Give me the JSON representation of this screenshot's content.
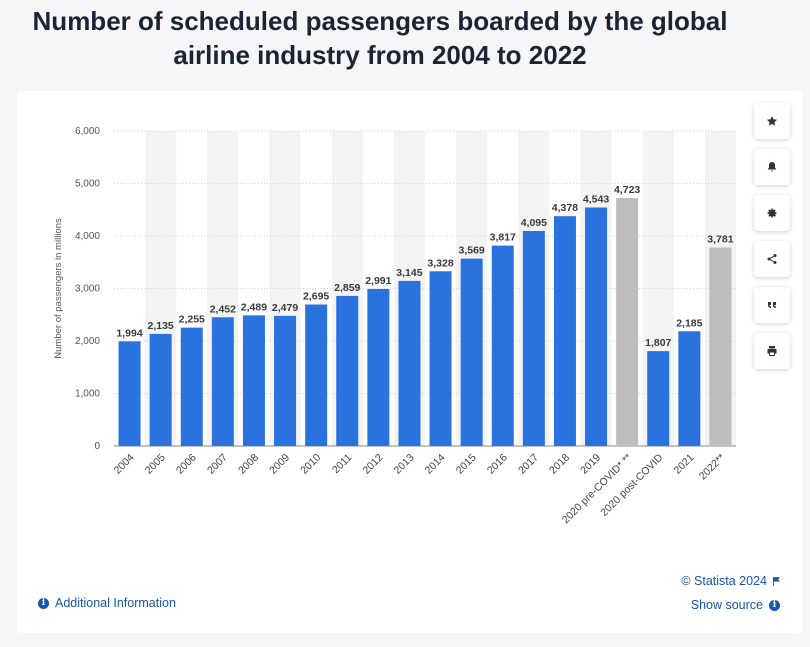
{
  "title": "Number of scheduled passengers boarded by the global airline industry from 2004 to 2022",
  "colors": {
    "bar": "#2a72de",
    "bar_estimate": "#bdbdbd",
    "band": "#f3f3f3",
    "grid": "#cfd4da",
    "label": "#3a3a3a"
  },
  "chart_data": {
    "type": "bar",
    "ylabel": "Number of passengers in millions",
    "ylim": [
      0,
      6000
    ],
    "yticks": [
      "0",
      "1,000",
      "2,000",
      "3,000",
      "4,000",
      "5,000",
      "6,000"
    ],
    "categories": [
      "2004",
      "2005",
      "2006",
      "2007",
      "2008",
      "2009",
      "2010",
      "2011",
      "2012",
      "2013",
      "2014",
      "2015",
      "2016",
      "2017",
      "2018",
      "2019",
      "2020 pre-COVID* **",
      "2020 post-COVID",
      "2021",
      "2022**"
    ],
    "values": [
      1994,
      2135,
      2255,
      2452,
      2489,
      2479,
      2695,
      2859,
      2991,
      3145,
      3328,
      3569,
      3817,
      4095,
      4378,
      4543,
      4723,
      1807,
      2185,
      3781
    ],
    "value_labels": [
      "1,994",
      "2,135",
      "2,255",
      "2,452",
      "2,489",
      "2,479",
      "2,695",
      "2,859",
      "2,991",
      "3,145",
      "3,328",
      "3,569",
      "3,817",
      "4,095",
      "4,378",
      "4,543",
      "4,723",
      "1,807",
      "2,185",
      "3,781"
    ],
    "estimate_flags": [
      false,
      false,
      false,
      false,
      false,
      false,
      false,
      false,
      false,
      false,
      false,
      false,
      false,
      false,
      false,
      false,
      true,
      false,
      false,
      true
    ],
    "grid": true,
    "legend": "none"
  },
  "toolbar": [
    {
      "name": "favorite-button",
      "icon": "star-icon"
    },
    {
      "name": "notification-button",
      "icon": "bell-icon"
    },
    {
      "name": "settings-button",
      "icon": "gear-icon"
    },
    {
      "name": "share-button",
      "icon": "share-icon"
    },
    {
      "name": "cite-button",
      "icon": "quote-icon"
    },
    {
      "name": "print-button",
      "icon": "printer-icon"
    }
  ],
  "footer": {
    "additional_info": "Additional Information",
    "credit": "© Statista 2024",
    "show_source": "Show source"
  }
}
